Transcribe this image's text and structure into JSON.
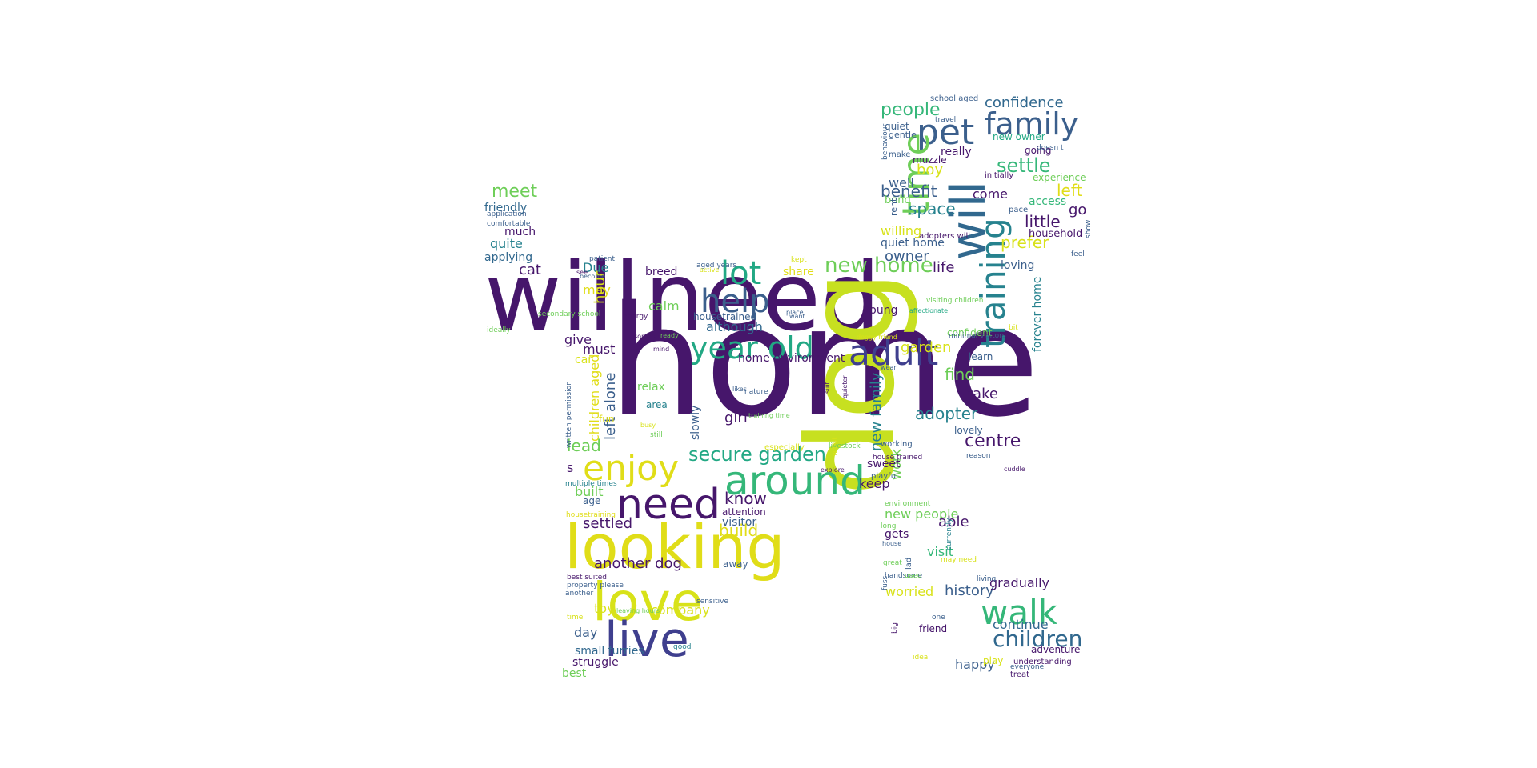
{
  "cloud": {
    "palette": {
      "deep_purple": "#46166b",
      "indigo": "#3f3f8e",
      "blue": "#3b5f8c",
      "steel": "#31688e",
      "teal": "#26828e",
      "sea": "#1f9e89",
      "green": "#35b779",
      "lime": "#6ece58",
      "yellow_green": "#b5de2b",
      "yellow": "#e0dd18"
    },
    "words": [
      {
        "text": "home",
        "color": "#46166b"
      },
      {
        "text": "will",
        "color": "#46166b"
      },
      {
        "text": "need",
        "color": "#46166b"
      },
      {
        "text": "dog",
        "color": "#c7e020"
      },
      {
        "text": "looking",
        "color": "#e0dd18"
      },
      {
        "text": "need",
        "color": "#46166b"
      },
      {
        "text": "love",
        "color": "#d8e219"
      },
      {
        "text": "live",
        "color": "#3f3f8e"
      },
      {
        "text": "around",
        "color": "#35b779"
      },
      {
        "text": "enjoy",
        "color": "#e0dd18"
      },
      {
        "text": "adult",
        "color": "#3f3f8e"
      },
      {
        "text": "year old",
        "color": "#22a884"
      },
      {
        "text": "help",
        "color": "#3b5f8c"
      },
      {
        "text": "lot",
        "color": "#22a884"
      },
      {
        "text": "pet",
        "color": "#3b5f8c"
      },
      {
        "text": "time",
        "color": "#6ece58"
      },
      {
        "text": "will",
        "color": "#31688e"
      },
      {
        "text": "family",
        "color": "#3b5f8c"
      },
      {
        "text": "training",
        "color": "#26828e"
      },
      {
        "text": "walk",
        "color": "#35b779"
      },
      {
        "text": "children",
        "color": "#31688e"
      },
      {
        "text": "secure garden",
        "color": "#22a884"
      },
      {
        "text": "new home",
        "color": "#6ece58"
      },
      {
        "text": "people",
        "color": "#35b779"
      },
      {
        "text": "confidence",
        "color": "#31688e"
      },
      {
        "text": "settle",
        "color": "#35b779"
      },
      {
        "text": "left",
        "color": "#e0dd18"
      },
      {
        "text": "go",
        "color": "#46166b"
      },
      {
        "text": "little",
        "color": "#46166b"
      },
      {
        "text": "prefer",
        "color": "#d8e219"
      },
      {
        "text": "household",
        "color": "#46166b"
      },
      {
        "text": "access",
        "color": "#35b779"
      },
      {
        "text": "experience",
        "color": "#6ece58"
      },
      {
        "text": "going",
        "color": "#46166b"
      },
      {
        "text": "new owner",
        "color": "#22a884"
      },
      {
        "text": "really",
        "color": "#46166b"
      },
      {
        "text": "muzzle",
        "color": "#46166b"
      },
      {
        "text": "boy",
        "color": "#d8e219"
      },
      {
        "text": "well",
        "color": "#3b5f8c"
      },
      {
        "text": "benefit",
        "color": "#3b5f8c"
      },
      {
        "text": "come",
        "color": "#46166b"
      },
      {
        "text": "space",
        "color": "#26828e"
      },
      {
        "text": "bond",
        "color": "#6ece58"
      },
      {
        "text": "willing",
        "color": "#d8e219"
      },
      {
        "text": "quiet home",
        "color": "#3b5f8c"
      },
      {
        "text": "owner",
        "color": "#3b5f8c"
      },
      {
        "text": "life",
        "color": "#46166b"
      },
      {
        "text": "loving",
        "color": "#3b5f8c"
      },
      {
        "text": "quiet",
        "color": "#3b5f8c"
      },
      {
        "text": "gentle",
        "color": "#3b5f8c"
      },
      {
        "text": "make",
        "color": "#3b5f8c"
      },
      {
        "text": "school aged",
        "color": "#3b5f8c"
      },
      {
        "text": "travel",
        "color": "#3b5f8c"
      },
      {
        "text": "doesn t",
        "color": "#3b5f8c"
      },
      {
        "text": "initially",
        "color": "#46166b"
      },
      {
        "text": "pace",
        "color": "#3b5f8c"
      },
      {
        "text": "adopters will",
        "color": "#46166b"
      },
      {
        "text": "feel",
        "color": "#3b5f8c"
      },
      {
        "text": "show",
        "color": "#3b5f8c"
      },
      {
        "text": "rent",
        "color": "#3b5f8c"
      },
      {
        "text": "behaviour",
        "color": "#3b5f8c"
      },
      {
        "text": "meet",
        "color": "#6ece58"
      },
      {
        "text": "friendly",
        "color": "#31688e"
      },
      {
        "text": "application",
        "color": "#3b5f8c"
      },
      {
        "text": "comfortable",
        "color": "#3b5f8c"
      },
      {
        "text": "much",
        "color": "#46166b"
      },
      {
        "text": "quite",
        "color": "#26828e"
      },
      {
        "text": "applying",
        "color": "#31688e"
      },
      {
        "text": "cat",
        "color": "#46166b"
      },
      {
        "text": "Due",
        "color": "#26828e"
      },
      {
        "text": "breed",
        "color": "#46166b"
      },
      {
        "text": "share",
        "color": "#e0dd18"
      },
      {
        "text": "hour",
        "color": "#d8e219"
      },
      {
        "text": "may",
        "color": "#e0dd18"
      },
      {
        "text": "calm",
        "color": "#6ece58"
      },
      {
        "text": "housetrained",
        "color": "#3b5f8c"
      },
      {
        "text": "although",
        "color": "#31688e"
      },
      {
        "text": "young",
        "color": "#46166b"
      },
      {
        "text": "give",
        "color": "#46166b"
      },
      {
        "text": "must",
        "color": "#46166b"
      },
      {
        "text": "car",
        "color": "#d8e219"
      },
      {
        "text": "home environment",
        "color": "#46166b"
      },
      {
        "text": "garden",
        "color": "#d8e219"
      },
      {
        "text": "confident",
        "color": "#6ece58"
      },
      {
        "text": "learn",
        "color": "#3b5f8c"
      },
      {
        "text": "find",
        "color": "#6ece58"
      },
      {
        "text": "take",
        "color": "#46166b"
      },
      {
        "text": "forever home",
        "color": "#26828e"
      },
      {
        "text": "adopter",
        "color": "#26828e"
      },
      {
        "text": "lovely",
        "color": "#3b5f8c"
      },
      {
        "text": "centre",
        "color": "#46166b"
      },
      {
        "text": "new family",
        "color": "#26828e"
      },
      {
        "text": "children aged",
        "color": "#e0dd18"
      },
      {
        "text": "left alone",
        "color": "#3b5f8c"
      },
      {
        "text": "relax",
        "color": "#6ece58"
      },
      {
        "text": "area",
        "color": "#26828e"
      },
      {
        "text": "slowly",
        "color": "#3b5f8c"
      },
      {
        "text": "girl",
        "color": "#46166b"
      },
      {
        "text": "lead",
        "color": "#6ece58"
      },
      {
        "text": "fun",
        "color": "#e0dd18"
      },
      {
        "text": "written permission",
        "color": "#3b5f8c"
      },
      {
        "text": "s",
        "color": "#46166b"
      },
      {
        "text": "built",
        "color": "#6ece58"
      },
      {
        "text": "age",
        "color": "#3b5f8c"
      },
      {
        "text": "settled",
        "color": "#46166b"
      },
      {
        "text": "multiple times",
        "color": "#26828e"
      },
      {
        "text": "housetraining",
        "color": "#e0dd18"
      },
      {
        "text": "know",
        "color": "#46166b"
      },
      {
        "text": "attention",
        "color": "#46166b"
      },
      {
        "text": "visitor",
        "color": "#3b5f8c"
      },
      {
        "text": "build",
        "color": "#e0dd18"
      },
      {
        "text": "another dog",
        "color": "#46166b"
      },
      {
        "text": "away",
        "color": "#3b5f8c"
      },
      {
        "text": "company",
        "color": "#d8e219"
      },
      {
        "text": "toy",
        "color": "#d8e219"
      },
      {
        "text": "day",
        "color": "#3b5f8c"
      },
      {
        "text": "small furries",
        "color": "#31688e"
      },
      {
        "text": "struggle",
        "color": "#46166b"
      },
      {
        "text": "best",
        "color": "#6ece58"
      },
      {
        "text": "keep",
        "color": "#46166b"
      },
      {
        "text": "work",
        "color": "#6ece58"
      },
      {
        "text": "sweet",
        "color": "#46166b"
      },
      {
        "text": "playful",
        "color": "#3b5f8c"
      },
      {
        "text": "new people",
        "color": "#6ece58"
      },
      {
        "text": "able",
        "color": "#46166b"
      },
      {
        "text": "gets",
        "color": "#46166b"
      },
      {
        "text": "visit",
        "color": "#35b779"
      },
      {
        "text": "worried",
        "color": "#d8e219"
      },
      {
        "text": "history",
        "color": "#3b5f8c"
      },
      {
        "text": "gradually",
        "color": "#46166b"
      },
      {
        "text": "continue",
        "color": "#31688e"
      },
      {
        "text": "friend",
        "color": "#46166b"
      },
      {
        "text": "happy",
        "color": "#3b5f8c"
      },
      {
        "text": "play",
        "color": "#d8e219"
      },
      {
        "text": "adventure",
        "color": "#46166b"
      },
      {
        "text": "understanding",
        "color": "#46166b"
      },
      {
        "text": "treat",
        "color": "#46166b"
      },
      {
        "text": "ideally",
        "color": "#6ece58"
      },
      {
        "text": "secondary school",
        "color": "#6ece58"
      },
      {
        "text": "patient",
        "color": "#3b5f8c"
      },
      {
        "text": "see",
        "color": "#46166b"
      },
      {
        "text": "become",
        "color": "#3b5f8c"
      },
      {
        "text": "aged years",
        "color": "#3b5f8c"
      },
      {
        "text": "kept",
        "color": "#d8e219"
      },
      {
        "text": "active",
        "color": "#d8e219"
      },
      {
        "text": "energy",
        "color": "#46166b"
      },
      {
        "text": "want",
        "color": "#3b5f8c"
      },
      {
        "text": "someone",
        "color": "#46166b"
      },
      {
        "text": "place",
        "color": "#3b5f8c"
      },
      {
        "text": "affectionate",
        "color": "#22a884"
      },
      {
        "text": "doggy friend",
        "color": "#d8e219"
      },
      {
        "text": "ready",
        "color": "#6ece58"
      },
      {
        "text": "mind",
        "color": "#46166b"
      },
      {
        "text": "wear",
        "color": "#3b5f8c"
      },
      {
        "text": "likes",
        "color": "#3b5f8c"
      },
      {
        "text": "nature",
        "color": "#3b5f8c"
      },
      {
        "text": "suit",
        "color": "#46166b"
      },
      {
        "text": "quieter",
        "color": "#46166b"
      },
      {
        "text": "busy",
        "color": "#d8e219"
      },
      {
        "text": "still",
        "color": "#6ece58"
      },
      {
        "text": "training time",
        "color": "#6ece58"
      },
      {
        "text": "livestock",
        "color": "#6ece58"
      },
      {
        "text": "especially",
        "color": "#d8e219"
      },
      {
        "text": "whilst",
        "color": "#d8e219"
      },
      {
        "text": "explore",
        "color": "#46166b"
      },
      {
        "text": "working",
        "color": "#3b5f8c"
      },
      {
        "text": "house trained",
        "color": "#46166b"
      },
      {
        "text": "reason",
        "color": "#3b5f8c"
      },
      {
        "text": "cuddle",
        "color": "#46166b"
      },
      {
        "text": "visiting children",
        "color": "#6ece58"
      },
      {
        "text": "minimal visitors",
        "color": "#3b5f8c"
      },
      {
        "text": "bit",
        "color": "#d8e219"
      },
      {
        "text": "environment",
        "color": "#6ece58"
      },
      {
        "text": "long",
        "color": "#6ece58"
      },
      {
        "text": "house",
        "color": "#3b5f8c"
      },
      {
        "text": "currently",
        "color": "#26828e"
      },
      {
        "text": "great",
        "color": "#6ece58"
      },
      {
        "text": "lad",
        "color": "#3b5f8c"
      },
      {
        "text": "may need",
        "color": "#d8e219"
      },
      {
        "text": "handsome",
        "color": "#3b5f8c"
      },
      {
        "text": "used",
        "color": "#6ece58"
      },
      {
        "text": "living",
        "color": "#3b5f8c"
      },
      {
        "text": "fuss",
        "color": "#3b5f8c"
      },
      {
        "text": "one",
        "color": "#3b5f8c"
      },
      {
        "text": "big",
        "color": "#46166b"
      },
      {
        "text": "ideal",
        "color": "#d8e219"
      },
      {
        "text": "everyone",
        "color": "#3b5f8c"
      },
      {
        "text": "best suited",
        "color": "#46166b"
      },
      {
        "text": "property please",
        "color": "#3b5f8c"
      },
      {
        "text": "another",
        "color": "#3b5f8c"
      },
      {
        "text": "sensitive",
        "color": "#3b5f8c"
      },
      {
        "text": "leaving hours",
        "color": "#6ece58"
      },
      {
        "text": "time",
        "color": "#d8e219"
      },
      {
        "text": "good",
        "color": "#26828e"
      },
      {
        "text": "goes home",
        "color": "#6ece58"
      },
      {
        "text": "plenty",
        "color": "#46166b"
      },
      {
        "text": "food",
        "color": "#3b5f8c"
      },
      {
        "text": "human",
        "color": "#3b5f8c"
      },
      {
        "text": "going home",
        "color": "#e0dd18"
      },
      {
        "text": "meeting new",
        "color": "#3b5f8c"
      }
    ]
  }
}
